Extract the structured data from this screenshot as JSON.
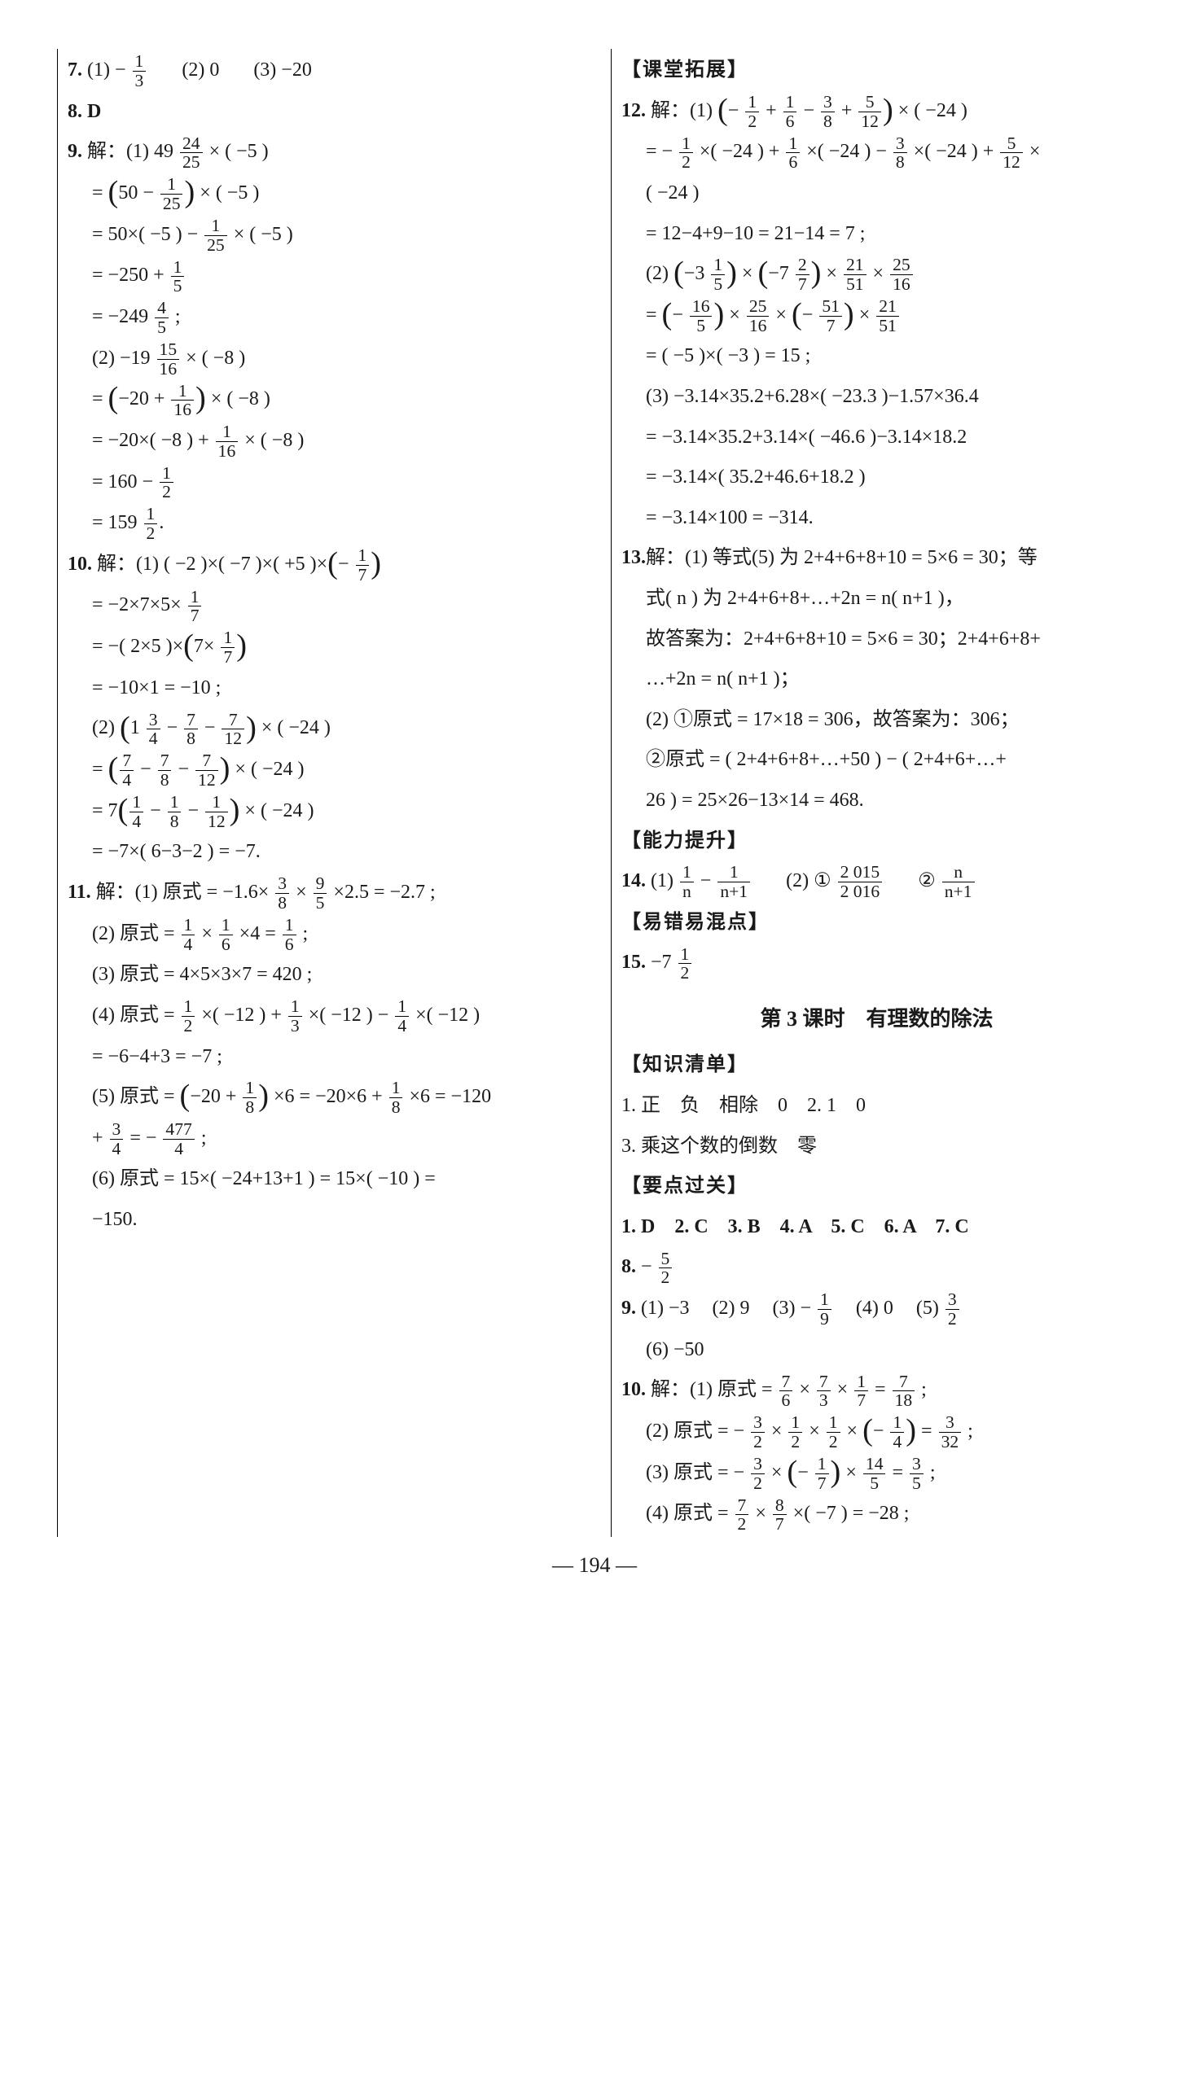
{
  "page_number": "— 194 —",
  "left": {
    "l7": "7.",
    "l7_1": "(1) − ",
    "l7_f1n": "1",
    "l7_f1d": "3",
    "l7_2": "(2) 0",
    "l7_3": "(3) −20",
    "l8": "8. D",
    "l9": "9.",
    "l9_lead": "解：(1) 49 ",
    "l9_f1n": "24",
    "l9_f1d": "25",
    "l9_tail": " × ( −5 )",
    "l9a_1": "= ",
    "l9a_f1n": "1",
    "l9a_f1d": "25",
    "l9a_2": " × ( −5 )",
    "l9a_pre": "50 − ",
    "l9b_1": "= 50×( −5 ) − ",
    "l9b_fn": "1",
    "l9b_fd": "25",
    "l9b_2": " × ( −5 )",
    "l9c_1": "= −250 + ",
    "l9c_fn": "1",
    "l9c_fd": "5",
    "l9d_1": "= −249 ",
    "l9d_fn": "4",
    "l9d_fd": "5",
    "l9d_2": " ;",
    "l9e_1": "(2) −19 ",
    "l9e_fn": "15",
    "l9e_fd": "16",
    "l9e_2": " × ( −8 )",
    "l9f_1": "= ",
    "l9f_pre": "−20 + ",
    "l9f_fn": "1",
    "l9f_fd": "16",
    "l9f_2": " × ( −8 )",
    "l9g_1": "= −20×( −8 ) + ",
    "l9g_fn": "1",
    "l9g_fd": "16",
    "l9g_2": " × ( −8 )",
    "l9h_1": "= 160 − ",
    "l9h_fn": "1",
    "l9h_fd": "2",
    "l9i_1": "= 159 ",
    "l9i_fn": "1",
    "l9i_fd": "2",
    "l9i_2": ".",
    "l10": "10.",
    "l10_lead": "解：(1) ( −2 )×( −7 )×( +5 )×",
    "l10_fn": "1",
    "l10_fd": "7",
    "l10_neg": "− ",
    "l10a_1": "= −2×7×5× ",
    "l10a_fn": "1",
    "l10a_fd": "7",
    "l10b_1": "= −( 2×5 )×",
    "l10b_pre": "7× ",
    "l10b_fn": "1",
    "l10b_fd": "7",
    "l10c": "= −10×1 = −10 ;",
    "l10d_1": "(2) ",
    "l10d_pre": "1 ",
    "l10d_f1n": "3",
    "l10d_f1d": "4",
    "l10d_m1": " − ",
    "l10d_f2n": "7",
    "l10d_f2d": "8",
    "l10d_m2": " − ",
    "l10d_f3n": "7",
    "l10d_f3d": "12",
    "l10d_2": " × ( −24 )",
    "l10e_1": "= ",
    "l10e_f1n": "7",
    "l10e_f1d": "4",
    "l10e_m1": " − ",
    "l10e_f2n": "7",
    "l10e_f2d": "8",
    "l10e_m2": " − ",
    "l10e_f3n": "7",
    "l10e_f3d": "12",
    "l10e_2": " × ( −24 )",
    "l10f_1": "= 7",
    "l10f_f1n": "1",
    "l10f_f1d": "4",
    "l10f_m1": " − ",
    "l10f_f2n": "1",
    "l10f_f2d": "8",
    "l10f_m2": " − ",
    "l10f_f3n": "1",
    "l10f_f3d": "12",
    "l10f_2": " × ( −24 )",
    "l10g": "= −7×( 6−3−2 ) = −7.",
    "l11": "11.",
    "l11_lead": "解：(1) 原式 = −1.6× ",
    "l11_f1n": "3",
    "l11_f1d": "8",
    "l11_m1": " × ",
    "l11_f2n": "9",
    "l11_f2d": "5",
    "l11_m2": " ×2.5 = −2.7 ;",
    "l11b_1": "(2) 原式 = ",
    "l11b_f1n": "1",
    "l11b_f1d": "4",
    "l11b_m1": " × ",
    "l11b_f2n": "1",
    "l11b_f2d": "6",
    "l11b_m2": " ×4 = ",
    "l11b_f3n": "1",
    "l11b_f3d": "6",
    "l11b_2": " ;",
    "l11c": "(3) 原式 = 4×5×3×7 = 420 ;",
    "l11d_1": "(4) 原式 = ",
    "l11d_f1n": "1",
    "l11d_f1d": "2",
    "l11d_m1": " ×( −12 ) + ",
    "l11d_f2n": "1",
    "l11d_f2d": "3",
    "l11d_m2": " ×( −12 ) − ",
    "l11d_f3n": "1",
    "l11d_f3d": "4",
    "l11d_m3": " ×( −12 )",
    "l11e": "= −6−4+3 = −7 ;",
    "l11f_1": "(5) 原式 = ",
    "l11f_pre": "−20 + ",
    "l11f_f1n": "1",
    "l11f_f1d": "8",
    "l11f_m1": " ×6 = −20×6 + ",
    "l11f_f2n": "1",
    "l11f_f2d": "8",
    "l11f_m2": " ×6 = −120",
    "l11g_1": "+ ",
    "l11g_f1n": "3",
    "l11g_f1d": "4",
    "l11g_m1": " = − ",
    "l11g_f2n": "477",
    "l11g_f2d": "4",
    "l11g_2": " ;",
    "l11h": "(6) 原式 = 15×( −24+13+1 ) = 15×( −10 ) =",
    "l11i": "−150."
  },
  "right": {
    "sec1": "【课堂拓展】",
    "l12": "12.",
    "l12_lead": "解：(1) ",
    "l12_neg": "− ",
    "l12_f1n": "1",
    "l12_f1d": "2",
    "l12_m1": " + ",
    "l12_f2n": "1",
    "l12_f2d": "6",
    "l12_m2": " − ",
    "l12_f3n": "3",
    "l12_f3d": "8",
    "l12_m3": " + ",
    "l12_f4n": "5",
    "l12_f4d": "12",
    "l12_tail": " × ( −24 )",
    "l12a_1": "= − ",
    "l12a_f1n": "1",
    "l12a_f1d": "2",
    "l12a_m1": " ×( −24 ) + ",
    "l12a_f2n": "1",
    "l12a_f2d": "6",
    "l12a_m2": " ×( −24 ) − ",
    "l12a_f3n": "3",
    "l12a_f3d": "8",
    "l12a_m3": " ×( −24 ) + ",
    "l12a_f4n": "5",
    "l12a_f4d": "12",
    "l12a_m4": " ×",
    "l12a2": "( −24 )",
    "l12b": "= 12−4+9−10 = 21−14 = 7 ;",
    "l12c_1": "(2) ",
    "l12c_pre1": "−3 ",
    "l12c_f1n": "1",
    "l12c_f1d": "5",
    "l12c_m1": " × ",
    "l12c_pre2": "−7 ",
    "l12c_f2n": "2",
    "l12c_f2d": "7",
    "l12c_m2": " × ",
    "l12c_f3n": "21",
    "l12c_f3d": "51",
    "l12c_m3": " × ",
    "l12c_f4n": "25",
    "l12c_f4d": "16",
    "l12d_1": "= ",
    "l12d_neg1": "− ",
    "l12d_f1n": "16",
    "l12d_f1d": "5",
    "l12d_m1": " × ",
    "l12d_f2n": "25",
    "l12d_f2d": "16",
    "l12d_m2": " × ",
    "l12d_neg2": "− ",
    "l12d_f3n": "51",
    "l12d_f3d": "7",
    "l12d_m3": " × ",
    "l12d_f4n": "21",
    "l12d_f4d": "51",
    "l12e": "= ( −5 )×( −3 ) = 15 ;",
    "l12f": "(3) −3.14×35.2+6.28×( −23.3 )−1.57×36.4",
    "l12g": "= −3.14×35.2+3.14×( −46.6 )−3.14×18.2",
    "l12h": "= −3.14×( 35.2+46.6+18.2 )",
    "l12i": "= −3.14×100 = −314.",
    "l13": "13.",
    "l13a": "解：(1) 等式(5) 为 2+4+6+8+10 = 5×6 = 30；等",
    "l13b": "式( n ) 为 2+4+6+8+…+2n = n( n+1 )，",
    "l13c": "故答案为：2+4+6+8+10 = 5×6 = 30；2+4+6+8+",
    "l13d": "…+2n = n( n+1 )；",
    "l13e": "(2) ①原式 = 17×18 = 306，故答案为：306；",
    "l13f": "②原式 = ( 2+4+6+8+…+50 ) − ( 2+4+6+…+",
    "l13g": "26 ) = 25×26−13×14 = 468.",
    "sec2": "【能力提升】",
    "l14": "14.",
    "l14_1": "(1) ",
    "l14_f1n": "1",
    "l14_f1d": "n",
    "l14_m1": " − ",
    "l14_f2n": "1",
    "l14_f2d": "n+1",
    "l14_2": "(2) ① ",
    "l14_f3n": "2 015",
    "l14_f3d": "2 016",
    "l14_3": "② ",
    "l14_f4n": "n",
    "l14_f4d": "n+1",
    "sec3": "【易错易混点】",
    "l15": "15.",
    "l15_1": "−7 ",
    "l15_fn": "1",
    "l15_fd": "2",
    "title": "第 3 课时　有理数的除法",
    "sec4": "【知识清单】",
    "k1": "1. 正　负　相除　0　2. 1　0",
    "k3": "3. 乘这个数的倒数　零",
    "sec5": "【要点过关】",
    "y1": "1. D　2. C　3. B　4. A　5. C　6. A　7. C",
    "y8": "8.",
    "y8_1": " − ",
    "y8_fn": "5",
    "y8_fd": "2",
    "y9": "9.",
    "y9_1": "(1) −3",
    "y9_2": "(2) 9",
    "y9_3": "(3) − ",
    "y9_f1n": "1",
    "y9_f1d": "9",
    "y9_4": "(4) 0",
    "y9_5": "(5) ",
    "y9_f2n": "3",
    "y9_f2d": "2",
    "y9_6": "(6) −50",
    "y10": "10.",
    "y10_lead": "解：(1) 原式 = ",
    "y10_f1n": "7",
    "y10_f1d": "6",
    "y10_m1": " × ",
    "y10_f2n": "7",
    "y10_f2d": "3",
    "y10_m2": " × ",
    "y10_f3n": "1",
    "y10_f3d": "7",
    "y10_m3": " = ",
    "y10_f4n": "7",
    "y10_f4d": "18",
    "y10_tail": " ;",
    "y10b_1": "(2) 原式 = − ",
    "y10b_f1n": "3",
    "y10b_f1d": "2",
    "y10b_m1": " × ",
    "y10b_f2n": "1",
    "y10b_f2d": "2",
    "y10b_m2": " × ",
    "y10b_f3n": "1",
    "y10b_f3d": "2",
    "y10b_m3": " × ",
    "y10b_pre": "− ",
    "y10b_f4n": "1",
    "y10b_f4d": "4",
    "y10b_m4": " = ",
    "y10b_f5n": "3",
    "y10b_f5d": "32",
    "y10b_2": " ;",
    "y10c_1": "(3) 原式 = − ",
    "y10c_f1n": "3",
    "y10c_f1d": "2",
    "y10c_m1": " × ",
    "y10c_pre": "− ",
    "y10c_f2n": "1",
    "y10c_f2d": "7",
    "y10c_m2": " × ",
    "y10c_f3n": "14",
    "y10c_f3d": "5",
    "y10c_m3": " = ",
    "y10c_f4n": "3",
    "y10c_f4d": "5",
    "y10c_2": " ;",
    "y10d_1": "(4) 原式 = ",
    "y10d_f1n": "7",
    "y10d_f1d": "2",
    "y10d_m1": " × ",
    "y10d_f2n": "8",
    "y10d_f2d": "7",
    "y10d_m2": " ×( −7 ) = −28 ;"
  }
}
